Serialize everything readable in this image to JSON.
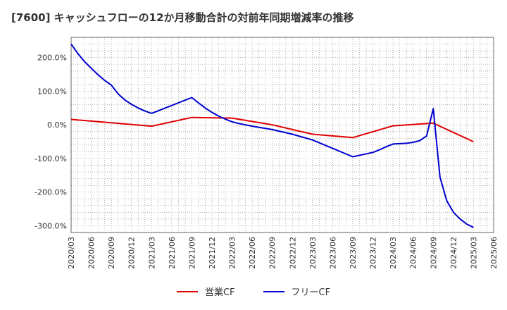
{
  "title": "[7600]  キャッシュフローの12か月移動合計の対前年同期増減率の推移",
  "chart_data": {
    "type": "line",
    "title": "[7600]  キャッシュフローの12か月移動合計の対前年同期増減率の推移",
    "xlabel": "",
    "ylabel": "",
    "ylim": [
      -320,
      260
    ],
    "yticks": [
      200,
      100,
      0,
      -100,
      -200,
      -300
    ],
    "ytick_labels": [
      "200.0%",
      "100.0%",
      "0.0%",
      "-100.0%",
      "-200.0%",
      "-300.0%"
    ],
    "xlim": [
      "2020/03",
      "2025/06"
    ],
    "xtick_labels": [
      "2020/03",
      "2020/06",
      "2020/09",
      "2020/12",
      "2021/03",
      "2021/06",
      "2021/09",
      "2021/12",
      "2022/03",
      "2022/06",
      "2022/09",
      "2022/12",
      "2023/03",
      "2023/06",
      "2023/09",
      "2023/12",
      "2024/03",
      "2024/06",
      "2024/09",
      "2024/12",
      "2025/03",
      "2025/06"
    ],
    "grid": true,
    "legend_position": "bottom",
    "series": [
      {
        "name": "営業CF",
        "color": "#e00000",
        "x": [
          "2020/03",
          "2021/03",
          "2021/09",
          "2022/03",
          "2022/09",
          "2023/03",
          "2023/09",
          "2024/03",
          "2024/09",
          "2025/03"
        ],
        "values": [
          16,
          -4,
          22,
          20,
          0,
          -28,
          -38,
          -3,
          5,
          -50
        ]
      },
      {
        "name": "フリーCF",
        "color": "#0000d0",
        "x": [
          "2020/03",
          "2020/04",
          "2020/05",
          "2020/06",
          "2020/07",
          "2020/08",
          "2020/09",
          "2020/10",
          "2020/11",
          "2020/12",
          "2021/01",
          "2021/02",
          "2021/03",
          "2021/09",
          "2021/10",
          "2021/11",
          "2021/12",
          "2022/01",
          "2022/02",
          "2022/03",
          "2022/04",
          "2022/06",
          "2022/09",
          "2022/12",
          "2023/03",
          "2023/06",
          "2023/09",
          "2023/12",
          "2024/01",
          "2024/02",
          "2024/03",
          "2024/05",
          "2024/06",
          "2024/07",
          "2024/08",
          "2024/09",
          "2024/10",
          "2024/11",
          "2024/12",
          "2025/01",
          "2025/02",
          "2025/03"
        ],
        "values": [
          240,
          212,
          188,
          168,
          149,
          132,
          118,
          92,
          74,
          61,
          50,
          41,
          34,
          81,
          65,
          50,
          37,
          26,
          17,
          9,
          4,
          -4,
          -14,
          -28,
          -45,
          -70,
          -95,
          -82,
          -74,
          -65,
          -57,
          -55,
          -52,
          -47,
          -33,
          48,
          -155,
          -225,
          -260,
          -280,
          -295,
          -305
        ]
      }
    ]
  },
  "legend": {
    "label_0": "営業CF",
    "label_1": "フリーCF"
  }
}
